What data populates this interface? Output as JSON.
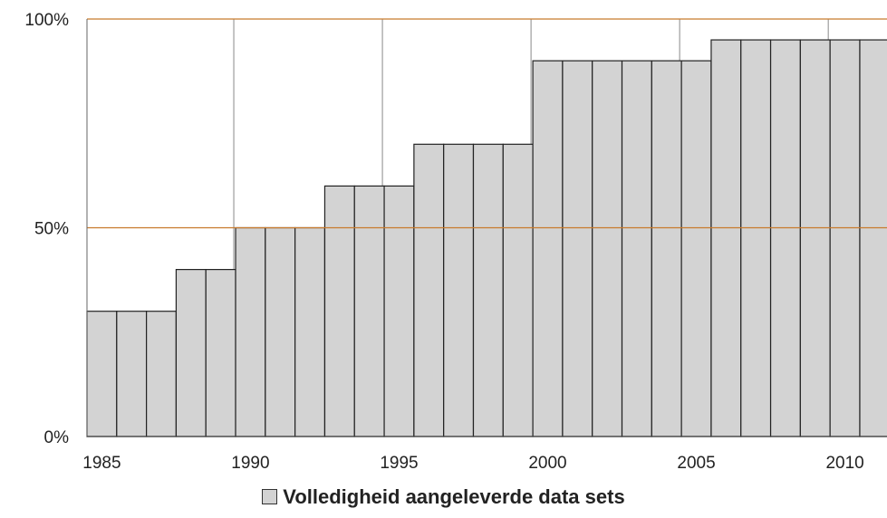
{
  "chart_data": {
    "type": "bar",
    "categories": [
      "1985",
      "1986",
      "1987",
      "1988",
      "1989",
      "1990",
      "1991",
      "1992",
      "1993",
      "1994",
      "1995",
      "1996",
      "1997",
      "1998",
      "1999",
      "2000",
      "2001",
      "2002",
      "2003",
      "2004",
      "2005",
      "2006",
      "2007",
      "2008",
      "2009",
      "2010",
      "2011"
    ],
    "x_tick_labels": [
      "1985",
      "1990",
      "1995",
      "2000",
      "2005",
      "2010"
    ],
    "y_tick_labels": [
      "0%",
      "50%",
      "100%"
    ],
    "series": [
      {
        "name": "Volledigheid aangeleverde data sets",
        "values": [
          30,
          30,
          30,
          40,
          40,
          50,
          50,
          50,
          60,
          60,
          60,
          70,
          70,
          70,
          70,
          90,
          90,
          90,
          90,
          90,
          90,
          95,
          95,
          95,
          95,
          95,
          95
        ]
      }
    ],
    "ylim": [
      0,
      100
    ],
    "y_unit": "%",
    "legend_position": "bottom",
    "grid": {
      "horizontal": true,
      "vertical": true
    },
    "colors": {
      "bar_fill": "#d3d3d3",
      "bar_stroke": "#222222",
      "h_grid": "#c87a2c",
      "v_grid": "#8a8a8a"
    }
  }
}
